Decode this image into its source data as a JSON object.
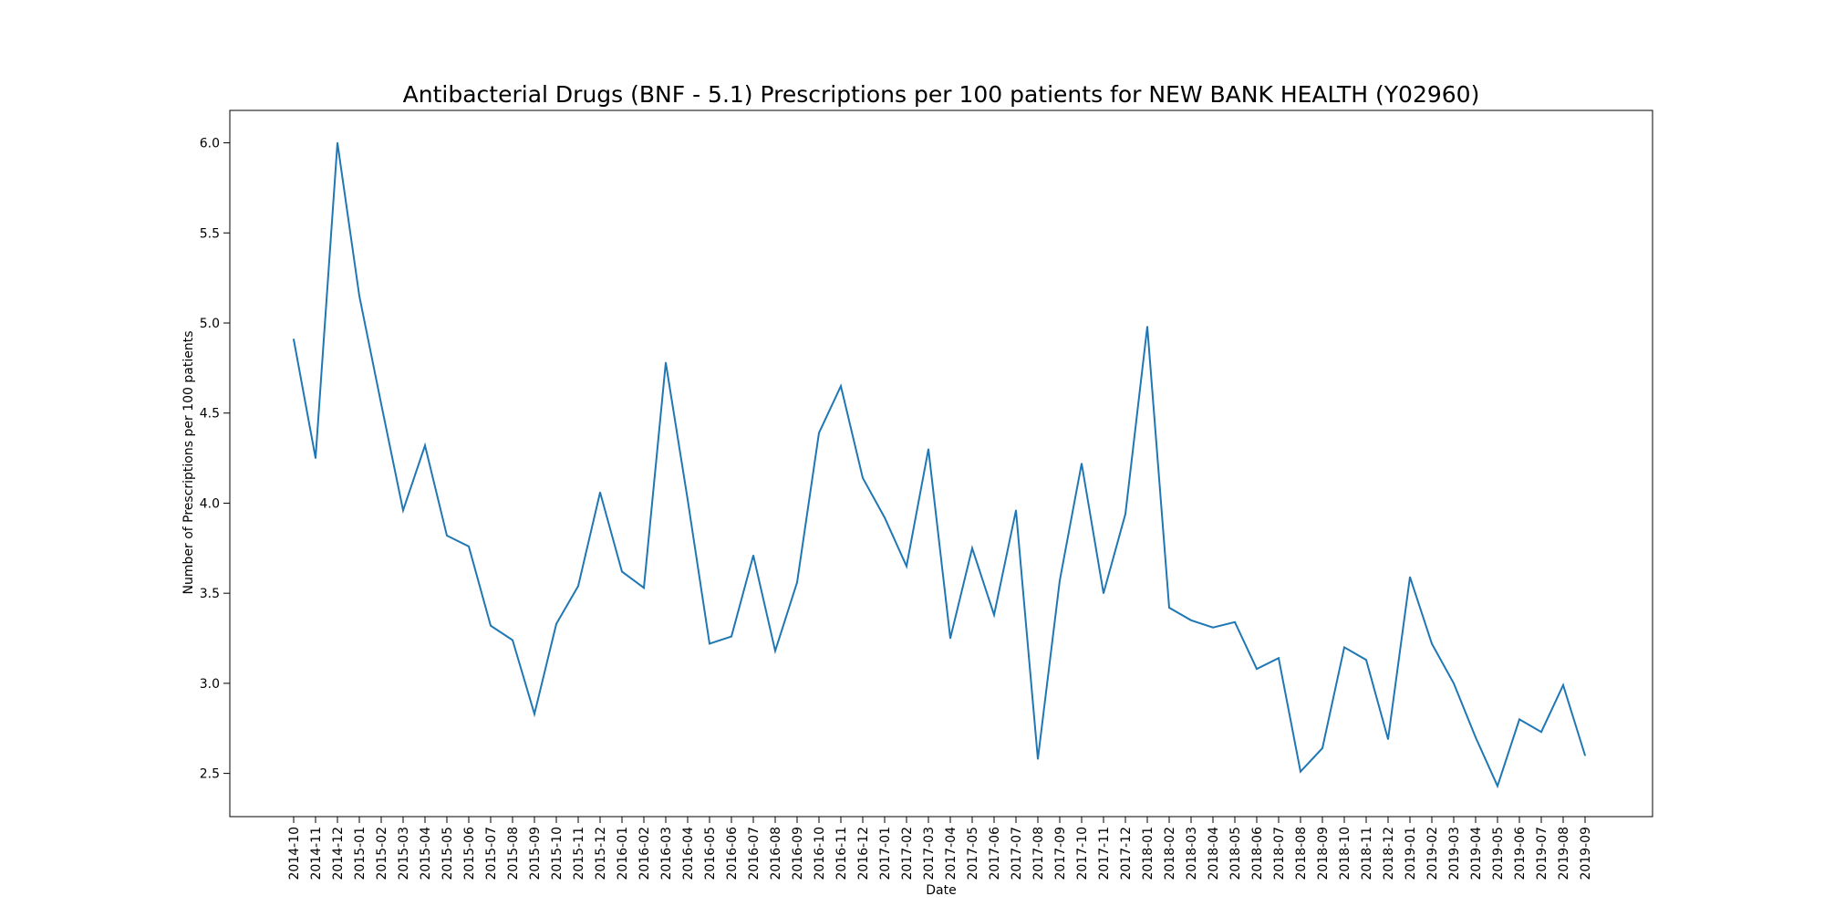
{
  "chart_data": {
    "type": "line",
    "title": "Antibacterial Drugs (BNF - 5.1) Prescriptions per 100 patients for NEW BANK HEALTH (Y02960)",
    "xlabel": "Date",
    "ylabel": "Number of Prescriptions per 100 patients",
    "ylim": [
      2.26,
      6.18
    ],
    "yticks": [
      "2.5",
      "3.0",
      "3.5",
      "4.0",
      "4.5",
      "5.0",
      "5.5",
      "6.0"
    ],
    "grid": false,
    "legend": "none",
    "line_color": "#1f77b4",
    "categories": [
      "2014-10",
      "2014-11",
      "2014-12",
      "2015-01",
      "2015-02",
      "2015-03",
      "2015-04",
      "2015-05",
      "2015-06",
      "2015-07",
      "2015-08",
      "2015-09",
      "2015-10",
      "2015-11",
      "2015-12",
      "2016-01",
      "2016-02",
      "2016-03",
      "2016-04",
      "2016-05",
      "2016-06",
      "2016-07",
      "2016-08",
      "2016-09",
      "2016-10",
      "2016-11",
      "2016-12",
      "2017-01",
      "2017-02",
      "2017-03",
      "2017-04",
      "2017-05",
      "2017-06",
      "2017-07",
      "2017-08",
      "2017-09",
      "2017-10",
      "2017-11",
      "2017-12",
      "2018-01",
      "2018-02",
      "2018-03",
      "2018-04",
      "2018-05",
      "2018-06",
      "2018-07",
      "2018-08",
      "2018-09",
      "2018-10",
      "2018-11",
      "2018-12",
      "2019-01",
      "2019-02",
      "2019-03",
      "2019-04",
      "2019-05",
      "2019-06",
      "2019-07",
      "2019-08",
      "2019-09"
    ],
    "series": [
      {
        "values": [
          4.91,
          4.25,
          6.0,
          5.15,
          4.55,
          3.96,
          4.32,
          3.82,
          3.76,
          3.32,
          3.24,
          2.83,
          3.33,
          3.54,
          4.06,
          3.62,
          3.53,
          4.78,
          4.02,
          3.22,
          3.26,
          3.71,
          3.18,
          3.56,
          4.39,
          4.65,
          4.14,
          3.92,
          3.65,
          4.3,
          3.25,
          3.75,
          3.38,
          3.96,
          2.58,
          3.57,
          4.22,
          3.5,
          3.94,
          4.98,
          3.42,
          3.35,
          3.31,
          3.34,
          3.08,
          3.14,
          2.51,
          2.64,
          3.2,
          3.13,
          2.69,
          3.59,
          3.22,
          3.0,
          2.7,
          2.43,
          2.8,
          2.73,
          2.99,
          2.6
        ]
      }
    ]
  }
}
